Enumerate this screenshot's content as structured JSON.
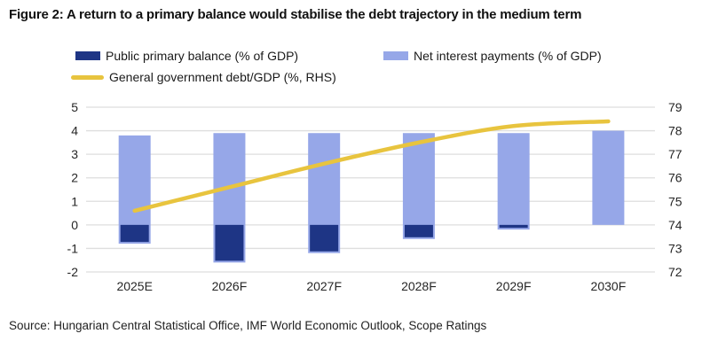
{
  "title": "Figure 2: A return to a primary balance would stabilise the debt trajectory in the medium term",
  "source": "Source: Hungarian Central Statistical Office, IMF World Economic Outlook, Scope Ratings",
  "legend": {
    "primary_balance": "Public primary balance (% of GDP)",
    "net_interest": "Net interest payments (% of GDP)",
    "debt_line": "General government debt/GDP (%, RHS)"
  },
  "colors": {
    "dark_blue": "#1e3585",
    "light_blue": "#96a7e8",
    "yellow": "#e8c43e",
    "gridline": "#dedede",
    "axis_text": "#262626"
  },
  "chart_data": {
    "type": "bar",
    "subtype": "combo-bar-line-dual-axis",
    "categories": [
      "2025E",
      "2026F",
      "2027F",
      "2028F",
      "2029F",
      "2030F"
    ],
    "series": [
      {
        "name": "Public primary balance (% of GDP)",
        "type": "bar",
        "axis": "left",
        "color": "#1e3585",
        "values": [
          -0.8,
          -1.6,
          -1.2,
          -0.6,
          -0.2,
          0
        ]
      },
      {
        "name": "Net interest payments (% of GDP)",
        "type": "bar",
        "axis": "left",
        "color": "#96a7e8",
        "values": [
          3.8,
          3.9,
          3.9,
          3.9,
          3.9,
          4.0
        ]
      },
      {
        "name": "General government debt/GDP (%, RHS)",
        "type": "line",
        "axis": "right",
        "color": "#e8c43e",
        "values": [
          74.6,
          75.6,
          76.6,
          77.5,
          78.2,
          78.4
        ]
      }
    ],
    "left_axis": {
      "ticks": [
        5,
        4,
        3,
        2,
        1,
        0,
        -1,
        -2
      ],
      "range": [
        -2,
        5
      ]
    },
    "right_axis": {
      "ticks": [
        79,
        78,
        77,
        76,
        75,
        74,
        73,
        72
      ],
      "range": [
        72,
        79
      ]
    },
    "grid": true,
    "legend_position": "top"
  }
}
